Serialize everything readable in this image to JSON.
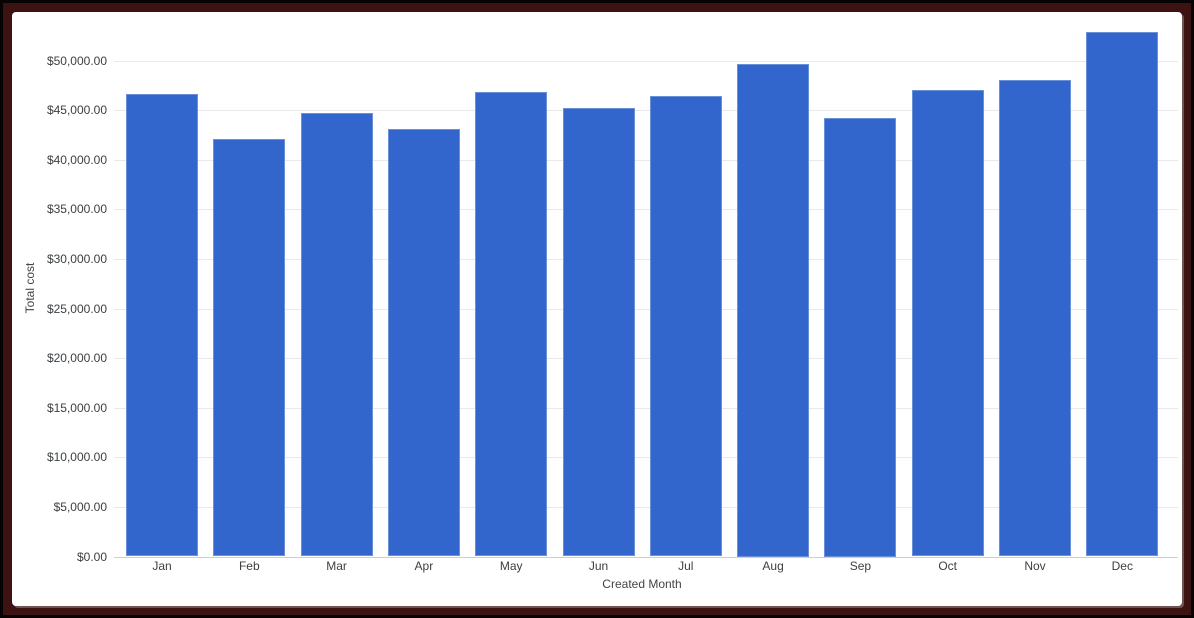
{
  "chart_data": {
    "type": "bar",
    "title": "",
    "categories": [
      "Jan",
      "Feb",
      "Mar",
      "Apr",
      "May",
      "Jun",
      "Jul",
      "Aug",
      "Sep",
      "Oct",
      "Nov",
      "Dec"
    ],
    "values": [
      46600,
      42050,
      44700,
      43050,
      46850,
      45250,
      46450,
      49650,
      44200,
      47000,
      48050,
      52850
    ],
    "xlabel": "Created Month",
    "ylabel": "Total cost",
    "ylim": [
      0,
      53000
    ],
    "ytick_step": 5000,
    "yticks": [
      {
        "value": 0,
        "label": "$0.00"
      },
      {
        "value": 5000,
        "label": "$5,000.00"
      },
      {
        "value": 10000,
        "label": "$10,000.00"
      },
      {
        "value": 15000,
        "label": "$15,000.00"
      },
      {
        "value": 20000,
        "label": "$20,000.00"
      },
      {
        "value": 25000,
        "label": "$25,000.00"
      },
      {
        "value": 30000,
        "label": "$30,000.00"
      },
      {
        "value": 35000,
        "label": "$35,000.00"
      },
      {
        "value": 40000,
        "label": "$40,000.00"
      },
      {
        "value": 45000,
        "label": "$45,000.00"
      },
      {
        "value": 50000,
        "label": "$50,000.00"
      }
    ],
    "grid": true,
    "legend": "none",
    "colors": {
      "bar": "#3366cc",
      "gridline": "#e9e9e9",
      "baseline": "#cfcfcf",
      "tick_text": "#3c4043",
      "axis_title_text": "#444444",
      "frame_outer": "#050303",
      "frame_inner": "#3d1312",
      "card_bg": "#ffffff"
    }
  }
}
